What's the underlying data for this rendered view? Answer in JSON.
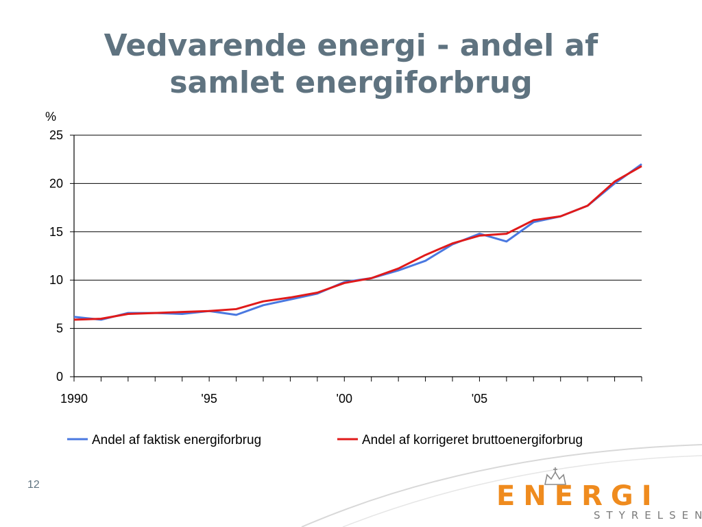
{
  "slide": {
    "title_line1": "Vedvarende energi - andel af",
    "title_line2": "samlet energiforbrug",
    "page_number": "12"
  },
  "logo": {
    "word": "ENERGI",
    "sub": "STYRELSEN",
    "color": "#ef8b1e"
  },
  "chart_data": {
    "type": "line",
    "ylabel": "%",
    "ylim": [
      0,
      25
    ],
    "yticks": [
      0,
      5,
      10,
      15,
      20,
      25
    ],
    "xlim": [
      1990,
      2011
    ],
    "xtick_labels": [
      {
        "x": 1990,
        "label": "1990"
      },
      {
        "x": 1995,
        "label": "'95"
      },
      {
        "x": 2000,
        "label": "'00"
      },
      {
        "x": 2005,
        "label": "'05"
      }
    ],
    "grid": "horizontal",
    "legend": "bottom",
    "x": [
      1990,
      1991,
      1992,
      1993,
      1994,
      1995,
      1996,
      1997,
      1998,
      1999,
      2000,
      2001,
      2002,
      2003,
      2004,
      2005,
      2006,
      2007,
      2008,
      2009,
      2010,
      2011
    ],
    "series": [
      {
        "name": "Andel af faktisk energiforbrug",
        "color": "#4a78e0",
        "values": [
          6.2,
          5.9,
          6.6,
          6.6,
          6.5,
          6.8,
          6.4,
          7.4,
          8.0,
          8.6,
          9.8,
          10.2,
          11.0,
          12.0,
          13.7,
          14.8,
          14.0,
          16.0,
          16.6,
          17.7,
          20.0,
          22.0
        ]
      },
      {
        "name": "Andel af korrigeret bruttoenergiforbrug",
        "color": "#e01a1a",
        "values": [
          5.9,
          6.0,
          6.5,
          6.6,
          6.7,
          6.8,
          7.0,
          7.8,
          8.2,
          8.7,
          9.7,
          10.2,
          11.2,
          12.6,
          13.8,
          14.6,
          14.8,
          16.2,
          16.6,
          17.7,
          20.2,
          21.8
        ]
      }
    ]
  }
}
